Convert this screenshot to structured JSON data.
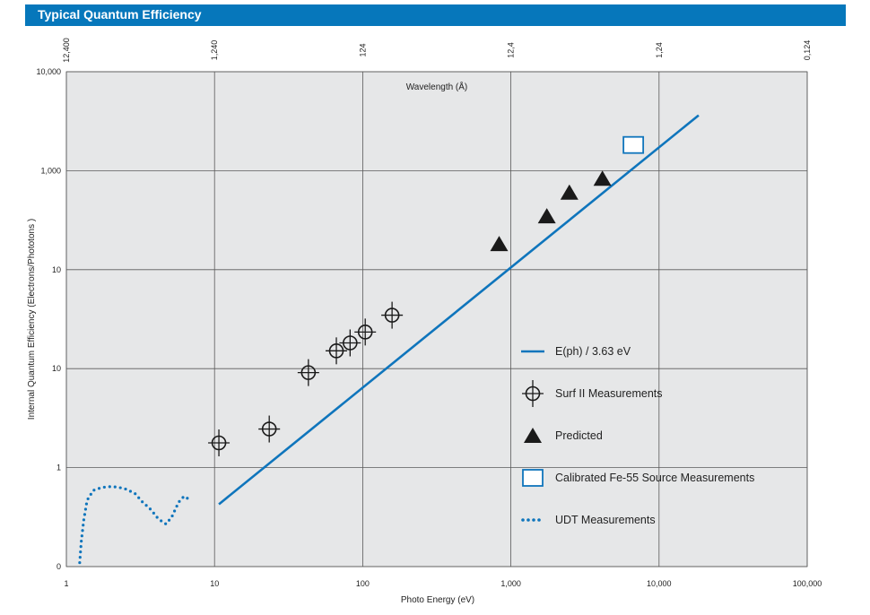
{
  "header": {
    "title": "Typical Quantum Efficiency"
  },
  "chart_data": {
    "type": "scatter",
    "title": "Typical Quantum Efficiency",
    "xlabel": "Photo Energy (eV)",
    "ylabel": "Internal Quantum Efficiency (Electrons/Phototons )",
    "top_axis_label": "Wavelength (Å)",
    "x_scale": "log",
    "xlim": [
      1,
      100000
    ],
    "x_ticks": [
      1,
      10,
      100,
      1000,
      10000,
      100000
    ],
    "x_tick_labels": [
      "1",
      "10",
      "100",
      "1,000",
      "10,000",
      "100,000"
    ],
    "top_tick_labels": [
      "12,400",
      "1,240",
      "124",
      "12,4",
      "1,24",
      "0,124"
    ],
    "y_tick_labels": [
      "0",
      "1",
      "10",
      "10",
      "1,000",
      "10,000"
    ],
    "colors": {
      "grid_bg": "#e6e7e8",
      "accent": "#0f75bc",
      "marker": "#1a1a1a",
      "title_bar": "#0677bb"
    },
    "series": [
      {
        "name": "E(ph) / 3.63 eV",
        "kind": "line",
        "x": [
          10.7,
          18500
        ],
        "y": [
          0.63,
          4.56
        ]
      },
      {
        "name": "Surf II Measurements",
        "kind": "crosshair",
        "x": [
          10.7,
          23.4,
          43,
          66.4,
          82.2,
          104,
          157.8
        ],
        "y": [
          1.25,
          1.39,
          1.96,
          2.18,
          2.26,
          2.37,
          2.54
        ]
      },
      {
        "name": "Predicted",
        "kind": "triangle",
        "x": [
          833,
          1748,
          2481,
          4148
        ],
        "y": [
          3.26,
          3.54,
          3.78,
          3.92
        ]
      },
      {
        "name": "Calibrated Fe-55 Source Measurements",
        "kind": "square",
        "x": [
          6707
        ],
        "y": [
          4.26
        ]
      },
      {
        "name": "UDT Measurements",
        "kind": "dotted",
        "x": [
          1.23,
          1.26,
          1.31,
          1.38,
          1.52,
          1.74,
          2.04,
          2.46,
          2.9,
          3.32,
          3.59,
          3.84,
          4.08,
          4.38,
          4.7,
          5.14,
          5.72,
          6.22,
          6.56,
          6.88
        ],
        "y": [
          0.04,
          0.25,
          0.47,
          0.67,
          0.77,
          0.8,
          0.81,
          0.79,
          0.74,
          0.64,
          0.6,
          0.55,
          0.5,
          0.46,
          0.43,
          0.5,
          0.65,
          0.71,
          0.69,
          0.66
        ]
      }
    ]
  }
}
